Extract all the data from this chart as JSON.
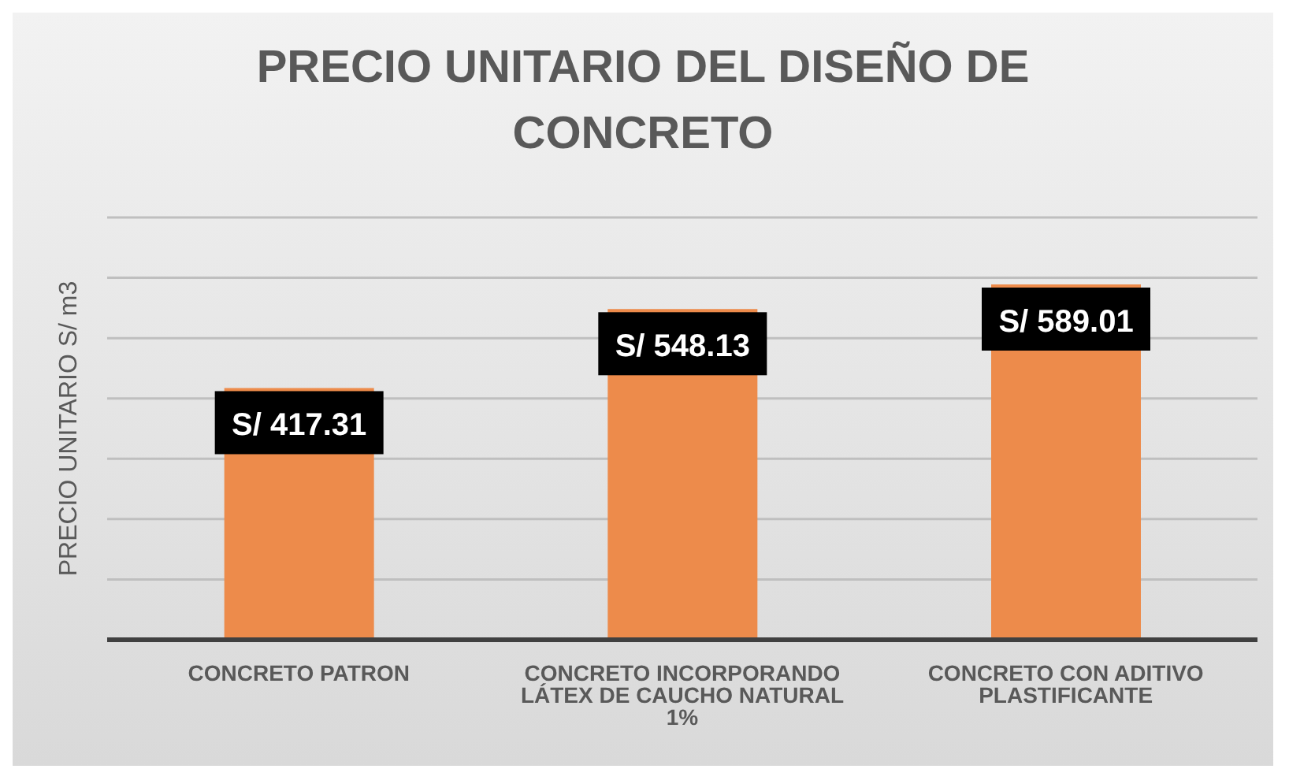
{
  "chart_data": {
    "type": "bar",
    "title": "PRECIO UNITARIO DEL DISEÑO DE CONCRETO",
    "ylabel": "PRECIO UNITARIO S/ m3",
    "categories": [
      "CONCRETO PATRON",
      "CONCRETO INCORPORANDO LÁTEX DE CAUCHO NATURAL 1%",
      "CONCRETO CON ADITIVO PLASTIFICANTE"
    ],
    "values": [
      417.31,
      548.13,
      589.01
    ],
    "color": "#ed8b4b",
    "value_labels": [
      "S/ 417.31",
      "S/ 548.13",
      "S/ 589.01"
    ],
    "ylim": [
      0,
      700
    ],
    "grid": "y",
    "tick_labels": "x",
    "legend": false
  }
}
